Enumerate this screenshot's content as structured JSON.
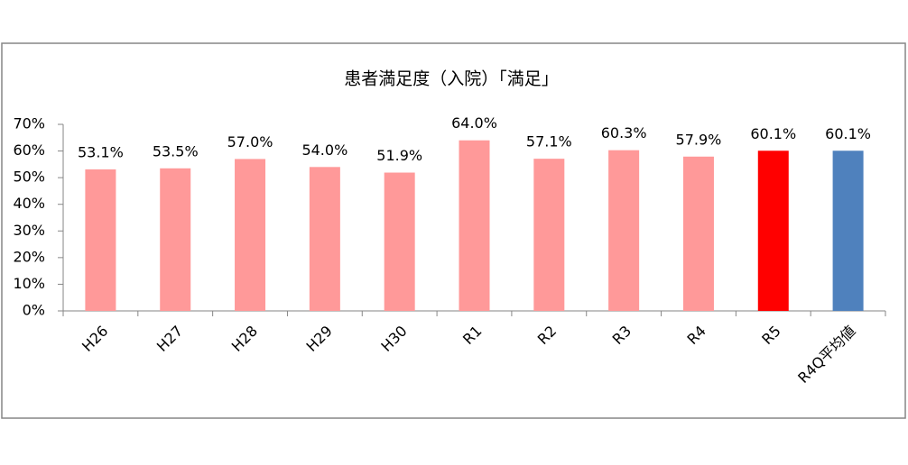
{
  "chart_data": {
    "type": "bar",
    "title": "患者満足度（入院）「満足」",
    "categories": [
      "H26",
      "H27",
      "H28",
      "H29",
      "H30",
      "R1",
      "R2",
      "R3",
      "R4",
      "R5",
      "R4Q平均値"
    ],
    "values": [
      53.1,
      53.5,
      57.0,
      54.0,
      51.9,
      64.0,
      57.1,
      60.3,
      57.9,
      60.1,
      60.1
    ],
    "value_labels": [
      "53.1%",
      "53.5%",
      "57.0%",
      "54.0%",
      "51.9%",
      "64.0%",
      "57.1%",
      "60.3%",
      "57.9%",
      "60.1%",
      "60.1%"
    ],
    "colors": [
      "#ff9999",
      "#ff9999",
      "#ff9999",
      "#ff9999",
      "#ff9999",
      "#ff9999",
      "#ff9999",
      "#ff9999",
      "#ff9999",
      "#ff0000",
      "#4f81bd"
    ],
    "ylim": [
      0,
      70
    ],
    "yticks": [
      {
        "value": 0,
        "label": "0%"
      },
      {
        "value": 10,
        "label": "10%"
      },
      {
        "value": 20,
        "label": "20%"
      },
      {
        "value": 30,
        "label": "30%"
      },
      {
        "value": 40,
        "label": "40%"
      },
      {
        "value": 50,
        "label": "50%"
      },
      {
        "value": 60,
        "label": "60%"
      },
      {
        "value": 70,
        "label": "70%"
      }
    ],
    "grid": false
  }
}
